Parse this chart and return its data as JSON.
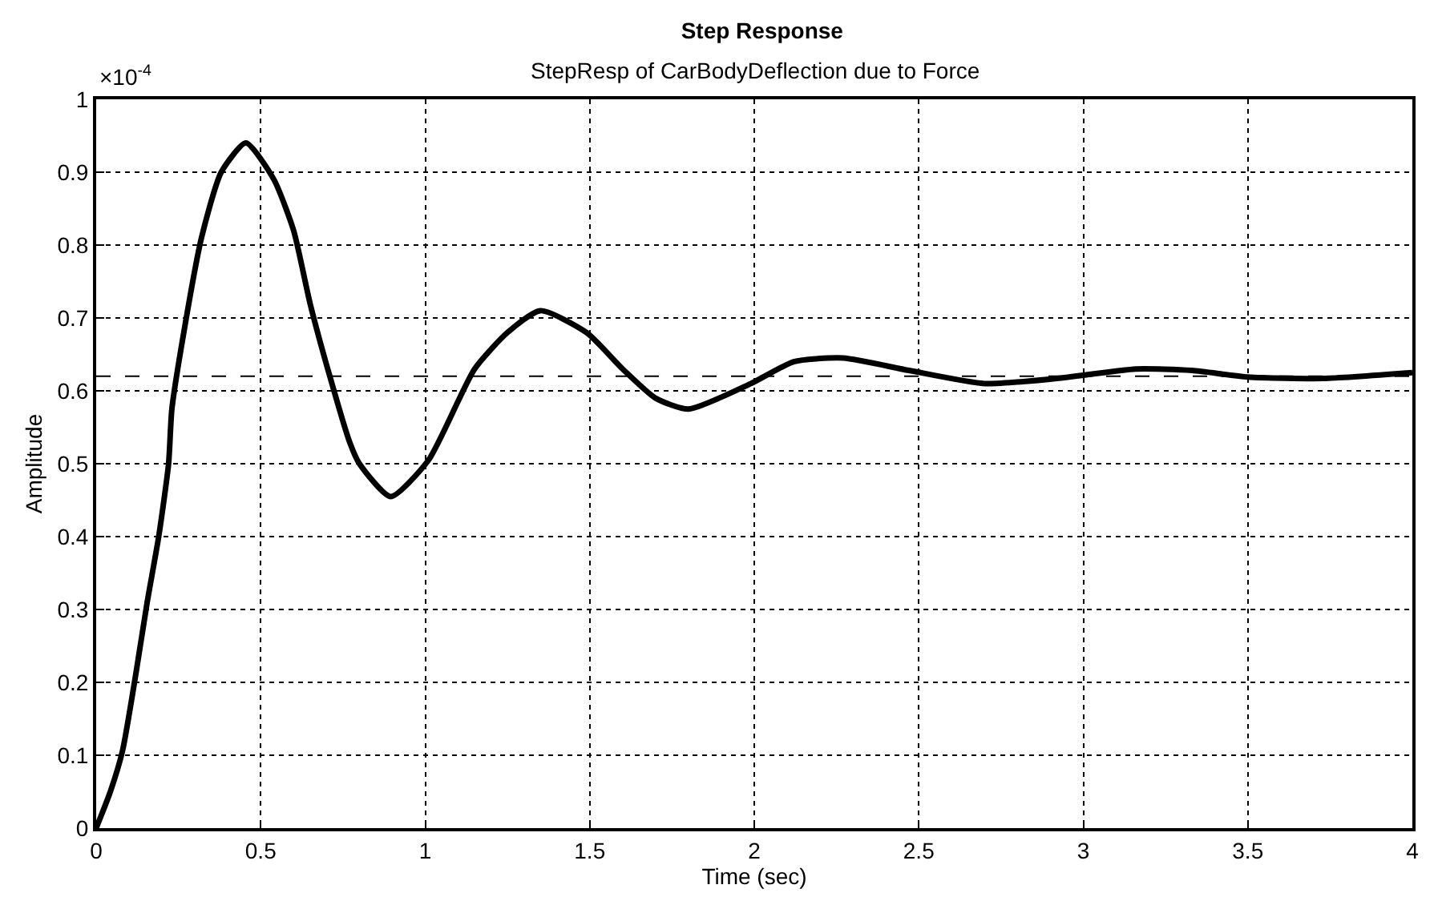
{
  "chart_data": {
    "type": "line",
    "title": "Step Response",
    "subtitle": "StepResp of CarBodyDeflection due to Force",
    "xlabel": "Time (sec)",
    "ylabel": "Amplitude",
    "annotations": [
      "×10$^{-4}$"
    ],
    "x": [
      0,
      0.043,
      0.08,
      0.12,
      0.155,
      0.19,
      0.22,
      0.23,
      0.27,
      0.32,
      0.38,
      0.455,
      0.54,
      0.6,
      0.65,
      0.71,
      0.77,
      0.8,
      0.895,
      1.01,
      1.15,
      1.25,
      1.35,
      1.49,
      1.6,
      1.7,
      1.8,
      1.99,
      2.12,
      2.27,
      2.47,
      2.7,
      2.92,
      3.16,
      3.33,
      3.5,
      3.73,
      4.0
    ],
    "series": [
      {
        "color": "#000000",
        "values": [
          0,
          0.05,
          0.106,
          0.21,
          0.31,
          0.4,
          0.5,
          0.575,
          0.69,
          0.81,
          0.9,
          0.94,
          0.89,
          0.82,
          0.72,
          0.62,
          0.53,
          0.5,
          0.455,
          0.505,
          0.63,
          0.68,
          0.71,
          0.68,
          0.63,
          0.59,
          0.575,
          0.61,
          0.64,
          0.645,
          0.628,
          0.61,
          0.617,
          0.63,
          0.628,
          0.619,
          0.617,
          0.625
        ]
      }
    ],
    "ref_lines": [
      {
        "axis": "y",
        "value": 0.62,
        "color": "#000000",
        "line_style": "dashed"
      }
    ],
    "xlim": [
      0,
      4
    ],
    "xticks": [
      0,
      0.5,
      1,
      1.5,
      2,
      2.5,
      3,
      3.5,
      4
    ],
    "ylim": [
      0,
      1
    ],
    "yticks": [
      0,
      0.1,
      0.2,
      0.3,
      0.4,
      0.5,
      0.6,
      0.7,
      0.8,
      0.9,
      1
    ],
    "grid": true,
    "marker": "none",
    "line_style": "solid"
  }
}
